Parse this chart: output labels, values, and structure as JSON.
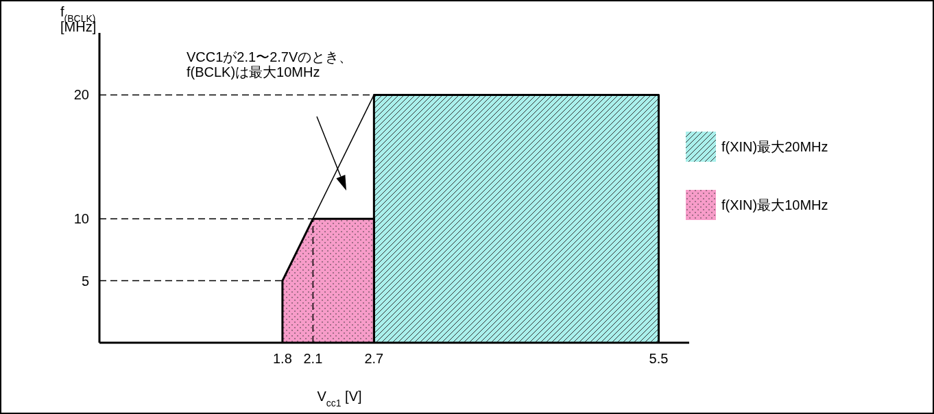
{
  "chart_data": {
    "type": "area",
    "xlabel": "V$_{cc1}$ [V]",
    "ylabel": "f$_{(BCLK)}$\n[MHz]",
    "xlim": [
      0,
      5.8
    ],
    "ylim": [
      0,
      25
    ],
    "xticks": [
      1.8,
      2.1,
      2.7,
      5.5
    ],
    "yticks": [
      5,
      10,
      20
    ],
    "series": [
      {
        "name": "f(XIN)最大20MHz",
        "color": "#aaf0ec",
        "x": [
          2.7,
          5.5
        ],
        "values": [
          20,
          20
        ]
      },
      {
        "name": "f(XIN)最大10MHz",
        "color": "#f79cc9",
        "x": [
          1.8,
          2.1,
          2.7
        ],
        "values": [
          5,
          10,
          10
        ]
      },
      {
        "type": "line",
        "color": "#000000",
        "x": [
          2.1,
          2.7
        ],
        "values": [
          10,
          20
        ]
      }
    ],
    "ref_lines": [
      {
        "axis": "y",
        "value": 5,
        "line_style": "dashed"
      },
      {
        "axis": "y",
        "value": 10,
        "line_style": "dashed"
      },
      {
        "axis": "y",
        "value": 20,
        "line_style": "dashed"
      },
      {
        "axis": "x",
        "value": 2.1,
        "line_style": "dashed"
      }
    ],
    "annotations": [
      "VCC1が2.1〜2.7Vのとき、\nf(BCLK)は最大10MHz"
    ],
    "legend": "right",
    "grid": false
  }
}
